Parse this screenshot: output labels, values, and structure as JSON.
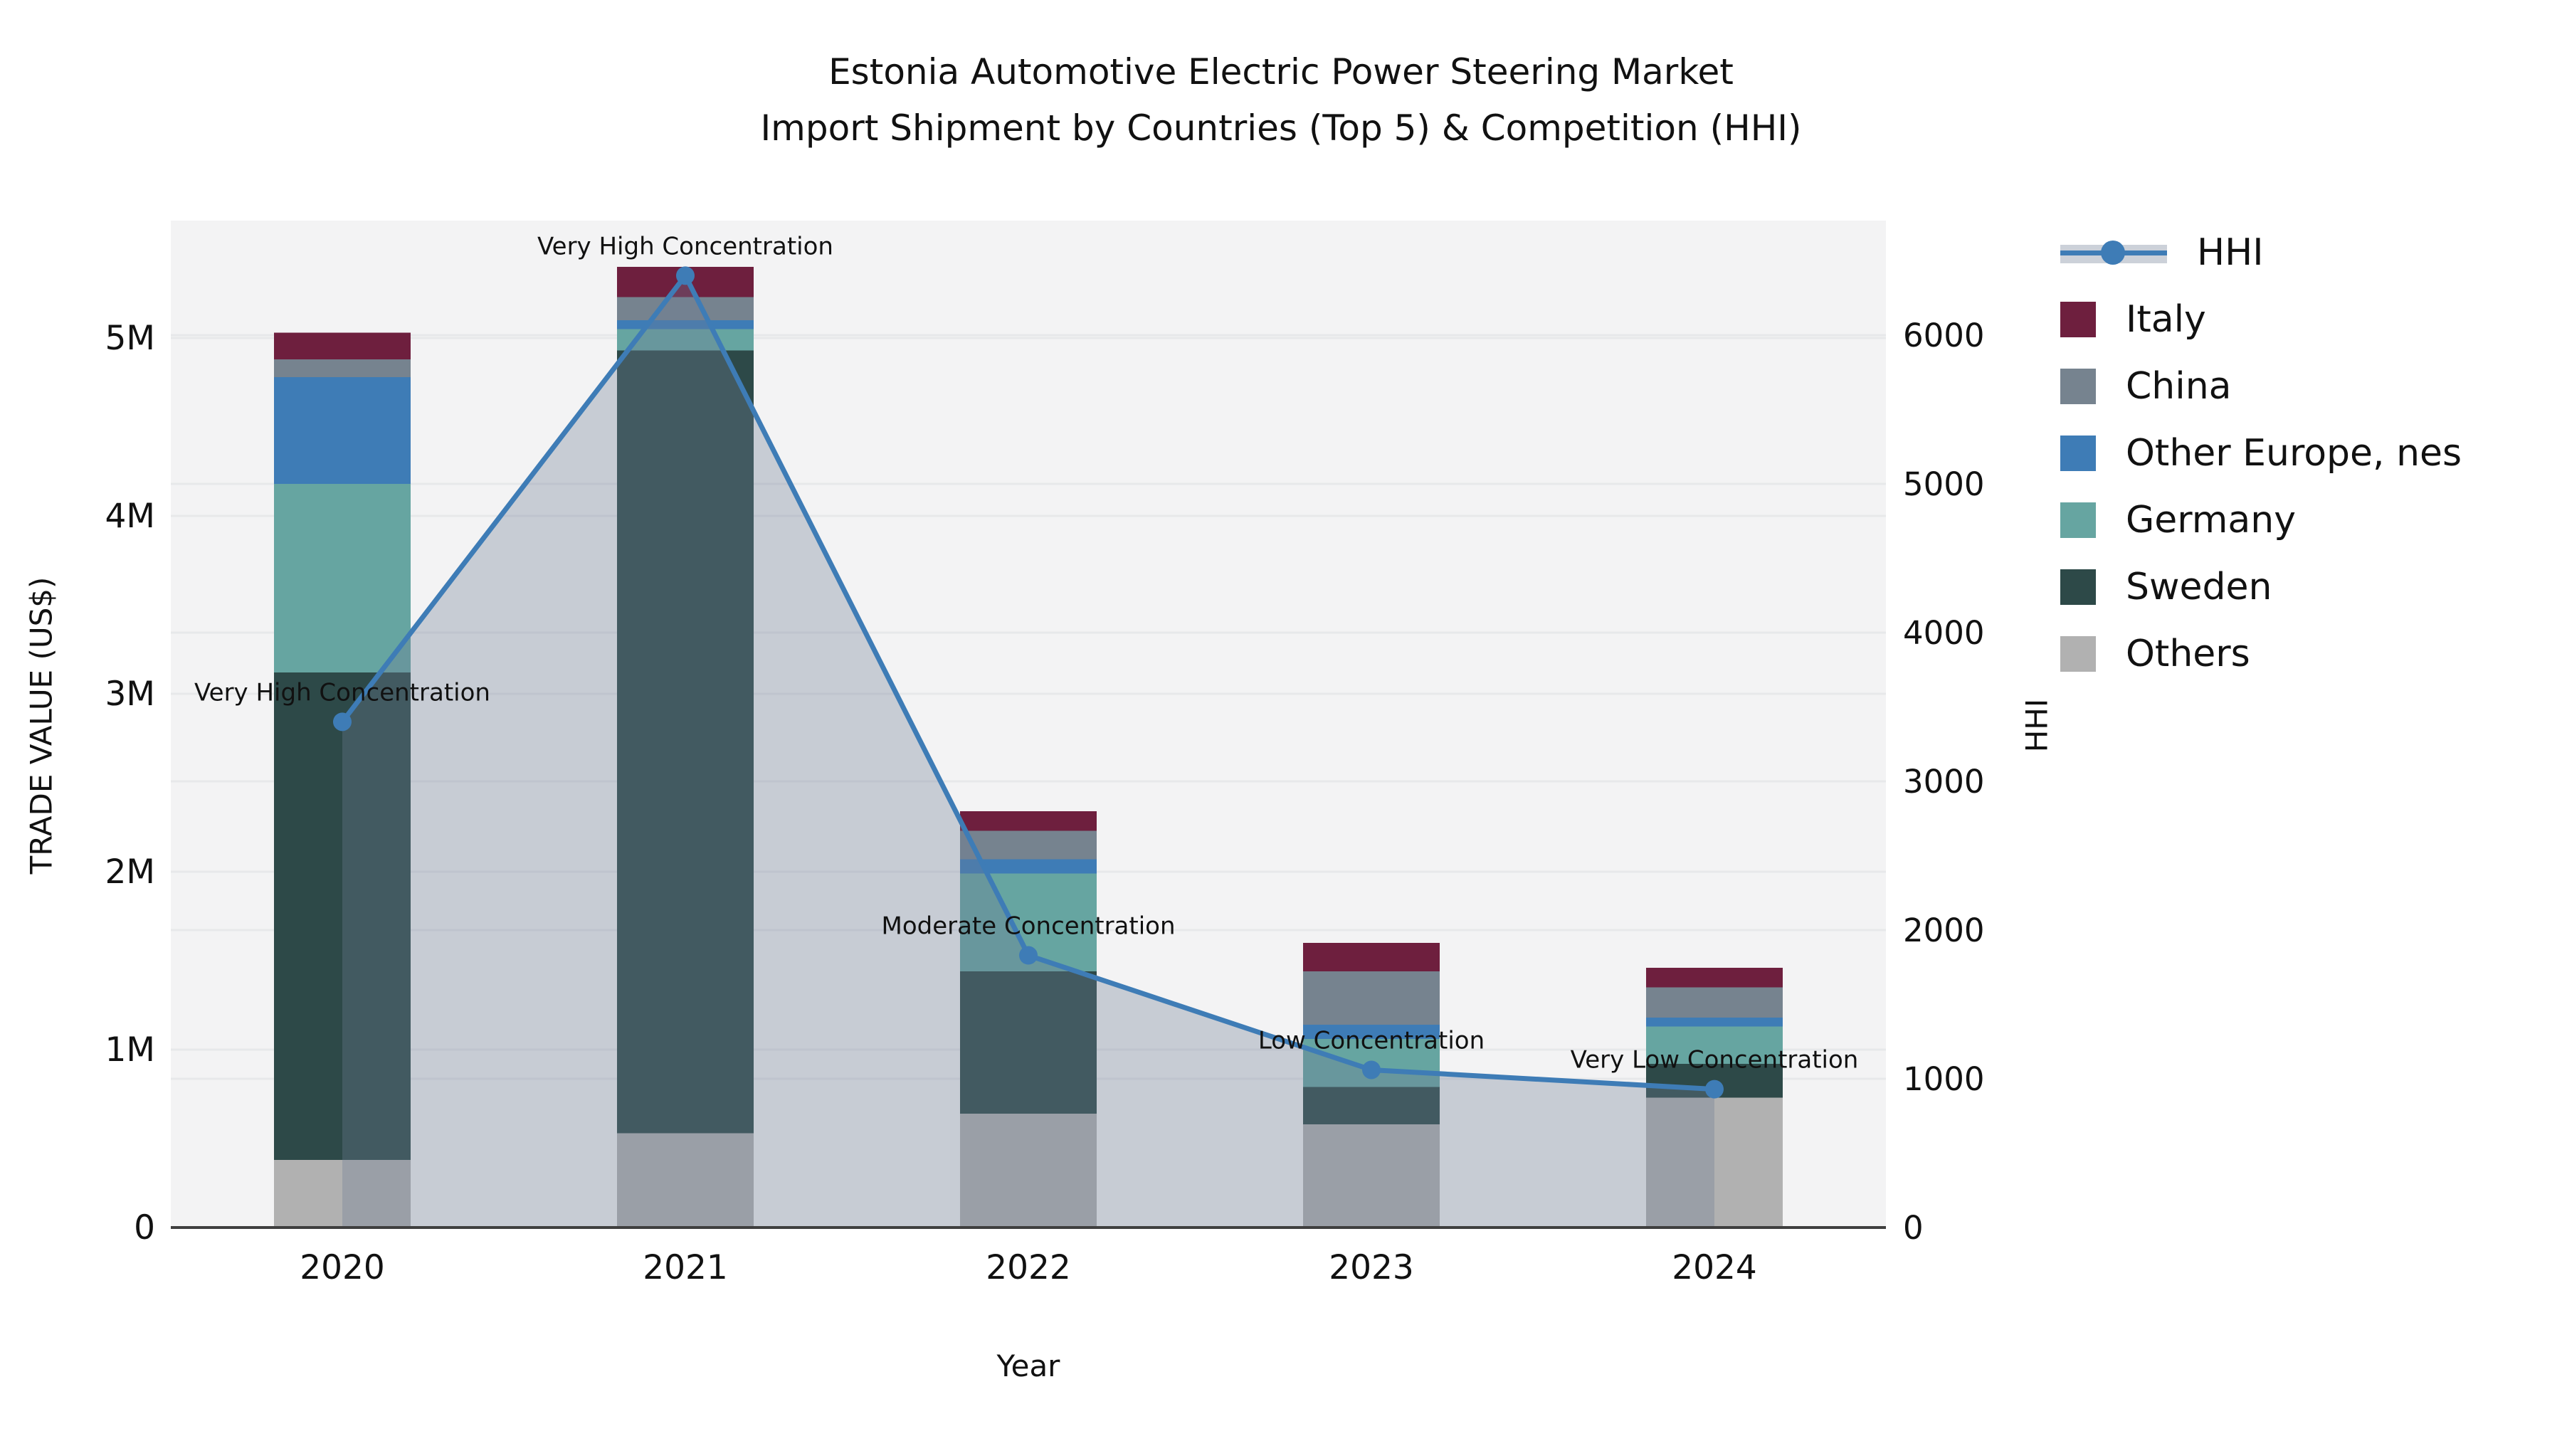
{
  "title": {
    "line1": "Estonia Automotive Electric Power Steering Market",
    "line2": "Import Shipment by Countries (Top 5) & Competition (HHI)"
  },
  "axes": {
    "left": {
      "title": "TRADE VALUE (US$)",
      "tick_labels": [
        "0",
        "1M",
        "2M",
        "3M",
        "4M",
        "5M"
      ],
      "tick_values_musd": [
        0,
        1,
        2,
        3,
        4,
        5
      ],
      "max_musd": 5.66
    },
    "right": {
      "title": "HHI",
      "tick_labels": [
        "0",
        "1000",
        "2000",
        "3000",
        "4000",
        "5000",
        "6000"
      ],
      "tick_values": [
        0,
        1000,
        2000,
        3000,
        4000,
        5000,
        6000
      ],
      "max": 6770
    },
    "x": {
      "title": "Year",
      "categories": [
        "2020",
        "2021",
        "2022",
        "2023",
        "2024"
      ]
    }
  },
  "legend": {
    "position": "right",
    "items": [
      {
        "label": "HHI",
        "type": "line"
      },
      {
        "label": "Italy",
        "type": "swatch"
      },
      {
        "label": "China",
        "type": "swatch"
      },
      {
        "label": "Other Europe, nes",
        "type": "swatch"
      },
      {
        "label": "Germany",
        "type": "swatch"
      },
      {
        "label": "Sweden",
        "type": "swatch"
      },
      {
        "label": "Others",
        "type": "swatch"
      }
    ]
  },
  "chart_data": {
    "type": "bar",
    "subtype": "stacked-bar-with-line",
    "title": "Estonia Automotive Electric Power Steering Market Import Shipment by Countries (Top 5) & Competition (HHI)",
    "xlabel": "Year",
    "ylabel": "TRADE VALUE (US$)",
    "ylabel_right": "HHI",
    "units_bars": "million US$",
    "categories": [
      "2020",
      "2021",
      "2022",
      "2023",
      "2024"
    ],
    "series": [
      {
        "name": "Others",
        "color": "#b1b1b1",
        "values": [
          0.38,
          0.53,
          0.64,
          0.58,
          0.73
        ]
      },
      {
        "name": "Sweden",
        "color": "#2d4948",
        "values": [
          2.74,
          4.4,
          0.8,
          0.21,
          0.19
        ]
      },
      {
        "name": "Germany",
        "color": "#66a5a1",
        "values": [
          1.06,
          0.12,
          0.55,
          0.27,
          0.21
        ]
      },
      {
        "name": "Other Europe, nes",
        "color": "#3e7cb6",
        "values": [
          0.6,
          0.05,
          0.08,
          0.08,
          0.05
        ]
      },
      {
        "name": "China",
        "color": "#76838f",
        "values": [
          0.1,
          0.13,
          0.16,
          0.3,
          0.17
        ]
      },
      {
        "name": "Italy",
        "color": "#6e1f3e",
        "values": [
          0.15,
          0.17,
          0.11,
          0.16,
          0.11
        ]
      }
    ],
    "bar_totals_musd": [
      5.03,
      5.4,
      2.34,
      1.6,
      1.46
    ],
    "line_series": {
      "name": "HHI",
      "axis": "right",
      "color": "#3e7cb6",
      "area_fill": "rgba(110,125,148,0.33)",
      "values": [
        3400,
        6400,
        1830,
        1060,
        930
      ]
    },
    "annotations": [
      {
        "category": "2020",
        "label": "Very High Concentration"
      },
      {
        "category": "2021",
        "label": "Very High Concentration"
      },
      {
        "category": "2022",
        "label": "Moderate Concentration"
      },
      {
        "category": "2023",
        "label": "Low Concentration"
      },
      {
        "category": "2024",
        "label": "Very Low Concentration"
      }
    ],
    "ylim_left_musd": [
      0,
      5.66
    ],
    "ylim_right": [
      0,
      6770
    ],
    "grid": true,
    "plot_background": "#f3f3f4",
    "gridline_color": "#e7e8ea",
    "axis_spine_color": "#3f3f3f",
    "legend_position": "right"
  }
}
